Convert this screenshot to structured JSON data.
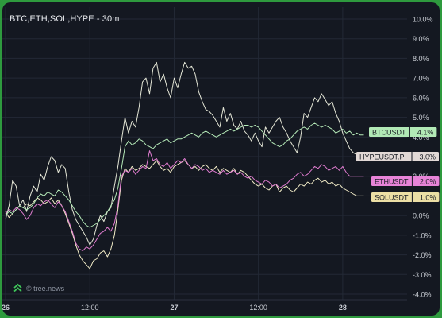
{
  "title": "BTC,ETH,SOL,HYPE - 30m",
  "watermark": "© tree.news",
  "colors": {
    "background": "#141821",
    "border": "#2e9a3e",
    "grid": "#232936",
    "axis_text": "#c9cdd4",
    "logo": "#3fc95a"
  },
  "chart_data": {
    "type": "line",
    "title": "BTC,ETH,SOL,HYPE - 30m",
    "x_ticks": [
      "26",
      "12:00",
      "27",
      "12:00",
      "28"
    ],
    "x_range": [
      0,
      115
    ],
    "x_tick_positions": [
      0,
      24,
      48,
      72,
      96
    ],
    "y_ticks": [
      "10.0%",
      "9.0%",
      "8.0%",
      "7.0%",
      "6.0%",
      "5.0%",
      "4.0%",
      "3.0%",
      "2.0%",
      "1.0%",
      "0.0%",
      "-1.0%",
      "-2.0%",
      "-3.0%",
      "-4.0%"
    ],
    "ylim": [
      -4.0,
      10.0
    ],
    "y_unit": "%",
    "grid": true,
    "series": [
      {
        "name": "BTCUSDT",
        "label": "BTCUSDT",
        "value_label": "4.1%",
        "color": "#b6ebb9",
        "tag_bg": "#b2e9b6",
        "values": [
          0.0,
          0.2,
          0.1,
          0.3,
          0.5,
          0.4,
          0.3,
          0.4,
          0.6,
          0.9,
          1.1,
          1.0,
          1.2,
          1.1,
          1.0,
          1.3,
          1.2,
          1.0,
          0.8,
          0.5,
          0.2,
          0.0,
          -0.3,
          -0.5,
          -0.6,
          -0.5,
          -0.4,
          -0.2,
          0.0,
          0.2,
          0.5,
          0.8,
          1.4,
          2.4,
          3.5,
          3.8,
          3.6,
          3.7,
          3.9,
          3.8,
          3.6,
          3.5,
          3.4,
          3.6,
          3.7,
          3.8,
          3.9,
          3.7,
          3.8,
          3.9,
          3.9,
          4.0,
          4.1,
          4.2,
          4.1,
          4.0,
          4.2,
          4.3,
          4.2,
          4.1,
          4.0,
          4.1,
          4.2,
          4.3,
          4.4,
          4.3,
          4.4,
          4.5,
          4.6,
          4.6,
          4.5,
          4.6,
          4.5,
          4.3,
          4.1,
          3.9,
          3.7,
          3.6,
          3.5,
          3.6,
          3.8,
          3.9,
          4.1,
          4.3,
          4.4,
          4.5,
          4.4,
          4.6,
          4.7,
          4.6,
          4.5,
          4.6,
          4.5,
          4.4,
          4.2,
          4.3,
          4.4,
          4.2,
          4.3,
          4.1,
          4.2,
          4.1,
          4.1
        ]
      },
      {
        "name": "HYPEUSDT.P",
        "label": "HYPEUSDT.P",
        "value_label": "3.0%",
        "color": "#e4e6d6",
        "tag_bg": "#e2d9d6",
        "values": [
          -0.2,
          0.5,
          1.8,
          1.5,
          0.5,
          0.8,
          0.2,
          1.0,
          1.5,
          1.2,
          2.1,
          1.8,
          2.5,
          3.0,
          2.8,
          2.2,
          2.6,
          2.4,
          1.2,
          0.3,
          -0.2,
          -0.5,
          -0.8,
          -1.1,
          -1.5,
          -1.2,
          -0.5,
          0.0,
          -0.3,
          0.2,
          0.4,
          1.5,
          2.5,
          3.8,
          5.0,
          4.2,
          4.8,
          4.5,
          5.5,
          6.8,
          7.0,
          6.2,
          7.5,
          7.8,
          6.8,
          7.2,
          6.5,
          6.0,
          7.0,
          6.5,
          7.2,
          7.8,
          7.5,
          7.6,
          7.2,
          6.3,
          5.8,
          5.4,
          5.3,
          5.1,
          4.8,
          4.5,
          5.5,
          4.8,
          5.2,
          4.6,
          4.4,
          4.8,
          4.3,
          4.1,
          3.8,
          4.2,
          3.8,
          3.5,
          4.5,
          4.2,
          4.5,
          4.8,
          5.0,
          4.5,
          4.2,
          3.8,
          3.5,
          3.2,
          4.0,
          5.2,
          5.0,
          5.5,
          6.0,
          5.8,
          6.2,
          5.9,
          5.6,
          5.8,
          5.2,
          4.8,
          4.2,
          3.8,
          3.4,
          3.2,
          3.1,
          3.0,
          3.0
        ]
      },
      {
        "name": "ETHUSDT",
        "label": "ETHUSDT",
        "value_label": "2.0%",
        "color": "#e07cd0",
        "tag_bg": "#e884d8",
        "values": [
          0.1,
          0.3,
          0.2,
          0.4,
          0.3,
          0.1,
          -0.2,
          0.0,
          0.4,
          0.6,
          0.5,
          0.7,
          0.8,
          0.6,
          0.4,
          0.7,
          0.5,
          0.2,
          -0.3,
          -0.8,
          -1.4,
          -1.7,
          -1.8,
          -1.6,
          -1.7,
          -1.5,
          -1.2,
          -0.9,
          -0.8,
          -0.6,
          -0.8,
          -0.4,
          0.5,
          2.0,
          2.3,
          2.2,
          2.4,
          2.1,
          2.3,
          2.5,
          2.4,
          3.3,
          2.8,
          2.9,
          2.6,
          2.5,
          2.7,
          2.4,
          2.6,
          2.8,
          2.7,
          2.9,
          2.6,
          2.4,
          2.6,
          2.5,
          2.3,
          2.4,
          2.2,
          2.3,
          2.2,
          2.1,
          2.3,
          2.1,
          2.2,
          2.3,
          2.1,
          2.2,
          2.0,
          1.9,
          2.0,
          1.8,
          1.7,
          1.6,
          1.8,
          1.7,
          1.5,
          1.6,
          1.4,
          1.5,
          1.6,
          1.8,
          1.9,
          2.1,
          2.2,
          2.0,
          2.1,
          2.3,
          2.5,
          2.4,
          2.6,
          2.5,
          2.3,
          2.4,
          2.5,
          2.3,
          2.5,
          2.2,
          2.0,
          2.0,
          2.0,
          2.0,
          2.0
        ]
      },
      {
        "name": "SOLUSDT",
        "label": "SOLUSDT",
        "value_label": "1.0%",
        "color": "#f1ebc6",
        "tag_bg": "#ecdfa5",
        "values": [
          0.2,
          -0.1,
          0.1,
          0.3,
          0.5,
          0.4,
          0.6,
          0.5,
          0.7,
          0.9,
          0.8,
          0.6,
          0.7,
          0.9,
          0.6,
          0.8,
          0.5,
          0.1,
          -0.4,
          -0.9,
          -1.5,
          -2.0,
          -2.3,
          -2.5,
          -2.7,
          -2.3,
          -2.2,
          -1.9,
          -1.8,
          -2.1,
          -1.7,
          -1.0,
          0.3,
          1.8,
          2.4,
          2.2,
          2.5,
          2.3,
          2.4,
          2.6,
          2.5,
          2.4,
          2.6,
          2.8,
          2.5,
          2.3,
          2.4,
          2.2,
          2.5,
          2.6,
          2.7,
          2.8,
          2.6,
          2.4,
          2.5,
          2.3,
          2.5,
          2.6,
          2.4,
          2.3,
          2.5,
          2.2,
          2.4,
          2.3,
          2.2,
          2.4,
          2.1,
          2.3,
          2.2,
          2.0,
          1.8,
          1.6,
          1.5,
          1.6,
          1.4,
          1.3,
          1.5,
          1.6,
          1.2,
          1.4,
          1.5,
          1.3,
          1.2,
          1.4,
          1.6,
          1.5,
          1.7,
          1.6,
          1.8,
          1.9,
          1.7,
          1.8,
          1.6,
          1.7,
          1.5,
          1.6,
          1.4,
          1.3,
          1.2,
          1.1,
          1.0,
          1.0,
          1.0
        ]
      }
    ]
  }
}
